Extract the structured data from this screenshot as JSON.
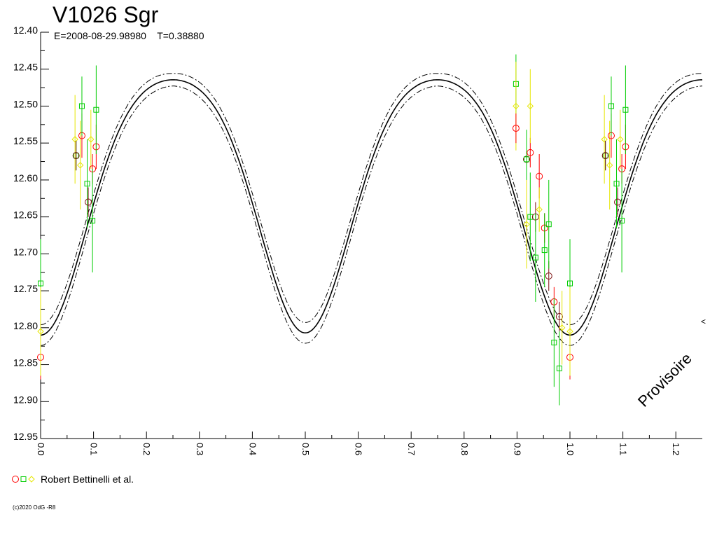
{
  "header": {
    "title": "V1026 Sgr",
    "epoch_line": "E=2008-08-29.98980    T=0.38880"
  },
  "legend": {
    "label": "Robert Bettinelli et al."
  },
  "watermark": "Provisoire",
  "edge_mark": "<",
  "copyright": "(c)2020 OdG -R8",
  "colors": {
    "model": "#000000",
    "red": "#ff0000",
    "green": "#00cc00",
    "yellow": "#e6e600",
    "dark": "#7a1010"
  },
  "chart_data": {
    "type": "scatter",
    "title": "V1026 Sgr",
    "xlabel": "",
    "ylabel": "",
    "xlim": [
      0.0,
      1.25
    ],
    "ylim": [
      12.4,
      12.95
    ],
    "y_inverted": true,
    "grid": false,
    "x_ticks": [
      "0.0",
      "0.1",
      "0.2",
      "0.3",
      "0.4",
      "0.5",
      "0.6",
      "0.7",
      "0.8",
      "0.9",
      "1.0",
      "1.1",
      "1.2"
    ],
    "y_ticks": [
      "12.40",
      "12.45",
      "12.50",
      "12.55",
      "12.60",
      "12.65",
      "12.70",
      "12.75",
      "12.80",
      "12.85",
      "12.90",
      "12.95"
    ],
    "model": {
      "max_mag": 12.455,
      "min_primary": 12.81,
      "min_secondary": 12.807,
      "envelope": 0.014
    },
    "series": [
      {
        "name": "Robert Bettinelli et al.",
        "points": [
          {
            "x": 0.0,
            "y": 12.84,
            "err": 0.03,
            "band": "red"
          },
          {
            "x": 0.0,
            "y": 12.74,
            "err": 0.06,
            "band": "green"
          },
          {
            "x": 0.0,
            "y": 12.805,
            "err": 0.06,
            "band": "yellow"
          },
          {
            "x": 0.065,
            "y": 12.545,
            "err": 0.06,
            "band": "yellow"
          },
          {
            "x": 0.067,
            "y": 12.567,
            "err": 0.02,
            "band": "green"
          },
          {
            "x": 0.067,
            "y": 12.567,
            "err": 0.02,
            "band": "dark"
          },
          {
            "x": 0.075,
            "y": 12.58,
            "err": 0.06,
            "band": "yellow"
          },
          {
            "x": 0.078,
            "y": 12.54,
            "err": 0.03,
            "band": "red"
          },
          {
            "x": 0.078,
            "y": 12.5,
            "err": 0.04,
            "band": "green"
          },
          {
            "x": 0.088,
            "y": 12.605,
            "err": 0.06,
            "band": "green"
          },
          {
            "x": 0.09,
            "y": 12.63,
            "err": 0.02,
            "band": "dark"
          },
          {
            "x": 0.095,
            "y": 12.545,
            "err": 0.04,
            "band": "yellow"
          },
          {
            "x": 0.098,
            "y": 12.585,
            "err": 0.02,
            "band": "red"
          },
          {
            "x": 0.098,
            "y": 12.655,
            "err": 0.07,
            "band": "green"
          },
          {
            "x": 0.105,
            "y": 12.555,
            "err": 0.03,
            "band": "red"
          },
          {
            "x": 0.105,
            "y": 12.505,
            "err": 0.06,
            "band": "green"
          },
          {
            "x": 0.898,
            "y": 12.47,
            "err": 0.04,
            "band": "green"
          },
          {
            "x": 0.898,
            "y": 12.5,
            "err": 0.06,
            "band": "yellow"
          },
          {
            "x": 0.898,
            "y": 12.53,
            "err": 0.02,
            "band": "red"
          },
          {
            "x": 0.918,
            "y": 12.572,
            "err": 0.02,
            "band": "dark"
          },
          {
            "x": 0.918,
            "y": 12.572,
            "err": 0.04,
            "band": "green"
          },
          {
            "x": 0.918,
            "y": 12.66,
            "err": 0.06,
            "band": "yellow"
          },
          {
            "x": 0.925,
            "y": 12.563,
            "err": 0.02,
            "band": "red"
          },
          {
            "x": 0.925,
            "y": 12.65,
            "err": 0.06,
            "band": "green"
          },
          {
            "x": 0.925,
            "y": 12.5,
            "err": 0.05,
            "band": "yellow"
          },
          {
            "x": 0.935,
            "y": 12.65,
            "err": 0.02,
            "band": "dark"
          },
          {
            "x": 0.935,
            "y": 12.705,
            "err": 0.06,
            "band": "green"
          },
          {
            "x": 0.942,
            "y": 12.595,
            "err": 0.03,
            "band": "red"
          },
          {
            "x": 0.942,
            "y": 12.64,
            "err": 0.03,
            "band": "yellow"
          },
          {
            "x": 0.952,
            "y": 12.665,
            "err": 0.02,
            "band": "red"
          },
          {
            "x": 0.952,
            "y": 12.695,
            "err": 0.05,
            "band": "green"
          },
          {
            "x": 0.96,
            "y": 12.73,
            "err": 0.02,
            "band": "dark"
          },
          {
            "x": 0.96,
            "y": 12.66,
            "err": 0.06,
            "band": "green"
          },
          {
            "x": 0.97,
            "y": 12.765,
            "err": 0.02,
            "band": "red"
          },
          {
            "x": 0.97,
            "y": 12.82,
            "err": 0.06,
            "band": "green"
          },
          {
            "x": 0.98,
            "y": 12.785,
            "err": 0.02,
            "band": "dark"
          },
          {
            "x": 0.98,
            "y": 12.855,
            "err": 0.05,
            "band": "green"
          },
          {
            "x": 0.985,
            "y": 12.8,
            "err": 0.05,
            "band": "yellow"
          },
          {
            "x": 1.0,
            "y": 12.84,
            "err": 0.03,
            "band": "red"
          },
          {
            "x": 1.0,
            "y": 12.74,
            "err": 0.06,
            "band": "green"
          },
          {
            "x": 1.0,
            "y": 12.805,
            "err": 0.06,
            "band": "yellow"
          },
          {
            "x": 1.065,
            "y": 12.545,
            "err": 0.06,
            "band": "yellow"
          },
          {
            "x": 1.067,
            "y": 12.567,
            "err": 0.02,
            "band": "green"
          },
          {
            "x": 1.067,
            "y": 12.567,
            "err": 0.02,
            "band": "dark"
          },
          {
            "x": 1.075,
            "y": 12.58,
            "err": 0.06,
            "band": "yellow"
          },
          {
            "x": 1.078,
            "y": 12.54,
            "err": 0.03,
            "band": "red"
          },
          {
            "x": 1.078,
            "y": 12.5,
            "err": 0.04,
            "band": "green"
          },
          {
            "x": 1.088,
            "y": 12.605,
            "err": 0.06,
            "band": "green"
          },
          {
            "x": 1.09,
            "y": 12.63,
            "err": 0.02,
            "band": "dark"
          },
          {
            "x": 1.095,
            "y": 12.545,
            "err": 0.04,
            "band": "yellow"
          },
          {
            "x": 1.098,
            "y": 12.585,
            "err": 0.02,
            "band": "red"
          },
          {
            "x": 1.098,
            "y": 12.655,
            "err": 0.07,
            "band": "green"
          },
          {
            "x": 1.105,
            "y": 12.555,
            "err": 0.03,
            "band": "red"
          },
          {
            "x": 1.105,
            "y": 12.505,
            "err": 0.06,
            "band": "green"
          }
        ]
      }
    ]
  }
}
